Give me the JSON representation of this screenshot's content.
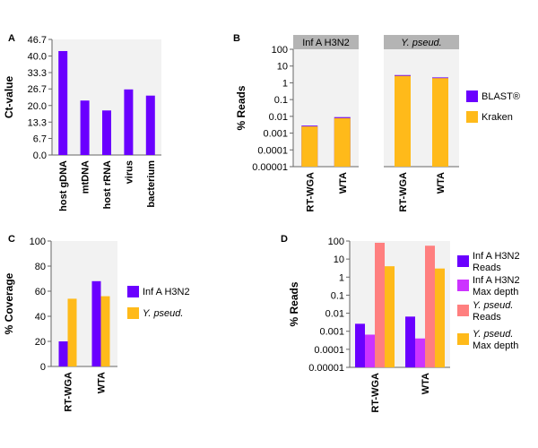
{
  "colors": {
    "purple": "#6a00ff",
    "orange": "#ffba1a",
    "magenta": "#cc33ff",
    "salmon": "#ff7f7f",
    "plot_bg": "#f2f2f2",
    "strip": "#b4b4b4"
  },
  "chart_data": [
    {
      "panel": "A",
      "type": "bar",
      "ylabel": "Ct-value",
      "ylim": [
        0.0,
        46.7
      ],
      "y_ticks": [
        "46.7",
        "40.0",
        "33.3",
        "26.7",
        "20.0",
        "13.3",
        "6.7",
        "0.0"
      ],
      "categories": [
        "host gDNA",
        "mtDNA",
        "host rRNA",
        "virus",
        "bacterium"
      ],
      "values": [
        42.0,
        22.0,
        18.0,
        26.5,
        24.0
      ]
    },
    {
      "panel": "B",
      "type": "bar",
      "ylabel": "% Reads",
      "scale": "log",
      "ylim": [
        1e-05,
        100
      ],
      "y_ticks": [
        "100",
        "10",
        "1",
        "0.1",
        "0.01",
        "0.001",
        "0.0001",
        "0.00001"
      ],
      "facets": [
        "Inf A H3N2",
        "Y. pseud."
      ],
      "categories": [
        "RT-WGA",
        "WTA"
      ],
      "series": [
        {
          "name": "BLAST®",
          "values": [
            [
              0.0028,
              0.009
            ],
            [
              2.9,
              2.1
            ]
          ]
        },
        {
          "name": "Kraken",
          "values": [
            [
              0.0025,
              0.0079
            ],
            [
              2.6,
              1.9
            ]
          ]
        }
      ]
    },
    {
      "panel": "C",
      "type": "bar",
      "ylabel": "% Coverage",
      "ylim": [
        0,
        100
      ],
      "y_ticks": [
        "100",
        "80",
        "60",
        "40",
        "20",
        "0"
      ],
      "categories": [
        "RT-WGA",
        "WTA"
      ],
      "series": [
        {
          "name": "Inf A H3N2",
          "values": [
            20,
            68
          ]
        },
        {
          "name": "Y. pseud.",
          "values": [
            54,
            56
          ]
        }
      ]
    },
    {
      "panel": "D",
      "type": "bar",
      "ylabel": "% Reads",
      "scale": "log",
      "ylim": [
        1e-05,
        100
      ],
      "y_ticks": [
        "100",
        "10",
        "1",
        "0.1",
        "0.01",
        "0.001",
        "0.0001",
        "0.00001"
      ],
      "categories": [
        "RT-WGA",
        "WTA"
      ],
      "series": [
        {
          "name": "Inf A H3N2 Reads",
          "values": [
            0.0026,
            0.0065
          ]
        },
        {
          "name": "Inf A H3N2 Max depth",
          "values": [
            0.00065,
            0.0004
          ]
        },
        {
          "name": "Y. pseud. Reads",
          "values": [
            80,
            55
          ]
        },
        {
          "name": "Y. pseud. Max depth",
          "values": [
            4,
            3
          ]
        }
      ],
      "legend": [
        {
          "line1": "Inf A H3N2",
          "line2": "Reads",
          "italic": false
        },
        {
          "line1": "Inf A H3N2",
          "line2": "Max depth",
          "italic": false
        },
        {
          "line1": "Y. pseud.",
          "line2": "Reads",
          "italic": true
        },
        {
          "line1": "Y. pseud.",
          "line2": "Max depth",
          "italic": true
        }
      ]
    }
  ]
}
